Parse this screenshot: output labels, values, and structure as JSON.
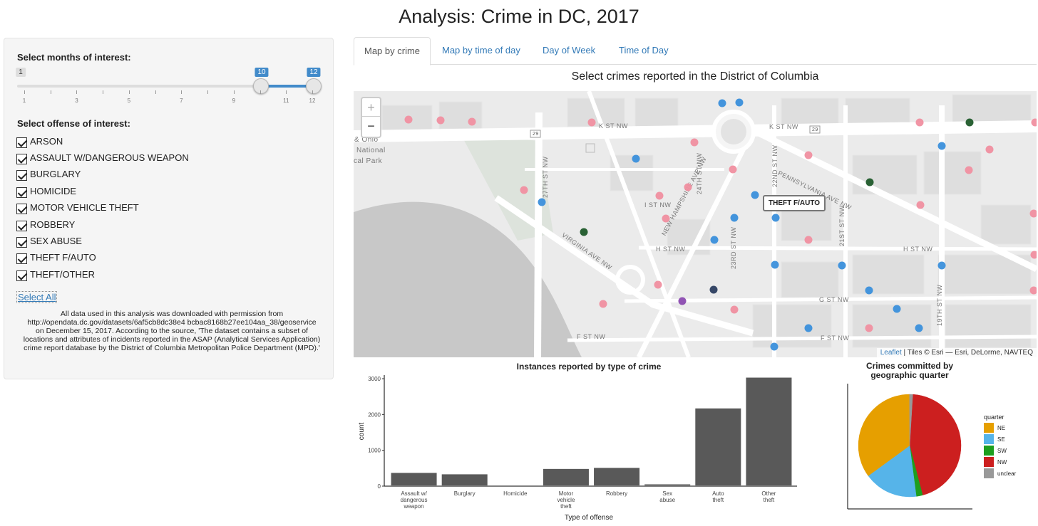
{
  "page_title": "Analysis: Crime in DC, 2017",
  "sidebar": {
    "months_label": "Select months of interest:",
    "slider": {
      "min": 1,
      "max": 12,
      "from": 10,
      "to": 12,
      "grid": [
        "1",
        "3",
        "5",
        "7",
        "9",
        "11",
        "12"
      ],
      "min_label": "1",
      "from_label": "10",
      "to_label": "12"
    },
    "offense_label": "Select offense of interest:",
    "offenses": [
      {
        "label": "ARSON",
        "checked": true
      },
      {
        "label": "ASSAULT W/DANGEROUS WEAPON",
        "checked": true
      },
      {
        "label": "BURGLARY",
        "checked": true
      },
      {
        "label": "HOMICIDE",
        "checked": true
      },
      {
        "label": "MOTOR VEHICLE THEFT",
        "checked": true
      },
      {
        "label": "ROBBERY",
        "checked": true
      },
      {
        "label": "SEX ABUSE",
        "checked": true
      },
      {
        "label": "THEFT F/AUTO",
        "checked": true
      },
      {
        "label": "THEFT/OTHER",
        "checked": true
      }
    ],
    "select_all": "Select All",
    "note": "All data used in this analysis was downloaded with permission from http://opendata.dc.gov/datasets/6af5cb8dc38e4 bcbac8168b27ee104aa_38/geoservice on December 15, 2017. According to the source, 'The dataset contains a subset of locations and attributes of incidents reported in the ASAP (Analytical Services Application) crime report database by the District of Columbia Metropolitan Police Department (MPD).'"
  },
  "tabs": [
    {
      "label": "Map by crime",
      "active": true
    },
    {
      "label": "Map by time of day",
      "active": false
    },
    {
      "label": "Day of Week",
      "active": false
    },
    {
      "label": "Time of Day",
      "active": false
    }
  ],
  "map": {
    "title": "Select crimes reported in the District of Columbia",
    "zoom_in": "+",
    "zoom_out": "−",
    "popup": "THEFT F/AUTO",
    "attribution_link": "Leaflet",
    "attribution_text": " | Tiles © Esri — Esri, DeLorme, NAVTEQ",
    "streets": [
      "K ST NW",
      "K ST NW",
      "I ST NW",
      "H ST NW",
      "H ST NW",
      "G ST NW",
      "F ST NW",
      "F ST NW",
      "PENNSYLVANIA AVE NW",
      "NEW HAMPSHIRE AVE NW",
      "VIRGINIA AVE NW",
      "27TH ST NW",
      "24TH ST NW",
      "22ND ST NW",
      "23RD ST NW",
      "21ST ST NW",
      "19TH ST NW",
      "29",
      "29",
      "& Ohio",
      "National",
      "cal Park"
    ],
    "colors": {
      "pink": "#f08fa0",
      "blue": "#3a8fdb",
      "green": "#1f5a2a",
      "navy": "#2c3e60",
      "purple": "#8b4bb0"
    }
  },
  "bar_chart": {
    "title": "Instances reported by type of crime",
    "xlabel": "Type of offense",
    "ylabel": "count"
  },
  "pie_chart": {
    "title_line1": "Crimes committed by",
    "title_line2": "geographic quarter",
    "legend_title": "quarter"
  },
  "chart_data": [
    {
      "type": "bar",
      "title": "Instances reported by type of crime",
      "xlabel": "Type of offense",
      "ylabel": "count",
      "categories": [
        "Assault w/ dangerous weapon",
        "Burglary",
        "Homicide",
        "Motor vehicle theft",
        "Robbery",
        "Sex abuse",
        "Auto theft",
        "Other theft"
      ],
      "category_lines": [
        [
          "Assault w/",
          "dangerous",
          "weapon"
        ],
        [
          "Burglary"
        ],
        [
          "Homicide"
        ],
        [
          "Motor",
          "vehicle",
          "theft"
        ],
        [
          "Robbery"
        ],
        [
          "Sex",
          "abuse"
        ],
        [
          "Auto",
          "theft"
        ],
        [
          "Other",
          "theft"
        ]
      ],
      "values": [
        370,
        330,
        20,
        480,
        510,
        50,
        2170,
        3030
      ],
      "yticks": [
        0,
        1000,
        2000,
        3000
      ],
      "ylim": [
        0,
        3100
      ],
      "grid": false,
      "bar_color": "#595959"
    },
    {
      "type": "pie",
      "title": "Crimes committed by geographic quarter",
      "legend_title": "quarter",
      "legend_position": "right",
      "labels": [
        "NE",
        "SE",
        "SW",
        "NW",
        "unclear"
      ],
      "values": [
        0.35,
        0.17,
        0.02,
        0.45,
        0.01
      ],
      "colors": [
        "#e69f00",
        "#56b4e9",
        "#1e9e1e",
        "#cc1f1f",
        "#999999"
      ]
    }
  ]
}
